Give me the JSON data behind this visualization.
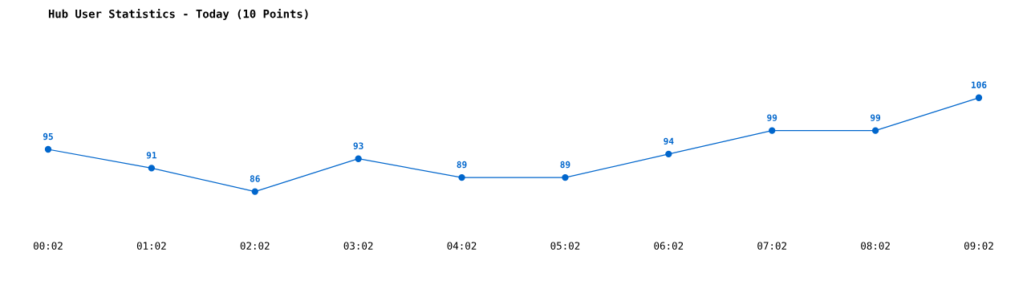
{
  "chart_data": {
    "type": "line",
    "title": "Hub User Statistics - Today (10 Points)",
    "categories": [
      "00:02",
      "01:02",
      "02:02",
      "03:02",
      "04:02",
      "05:02",
      "06:02",
      "07:02",
      "08:02",
      "09:02"
    ],
    "series": [
      {
        "color": "#0066cc",
        "values": [
          95,
          91,
          86,
          93,
          89,
          89,
          94,
          99,
          99,
          106
        ]
      }
    ],
    "data_labels": true,
    "marker": "circle",
    "line_style": "solid",
    "grid": false,
    "legend": false,
    "tick_labels": "x"
  }
}
